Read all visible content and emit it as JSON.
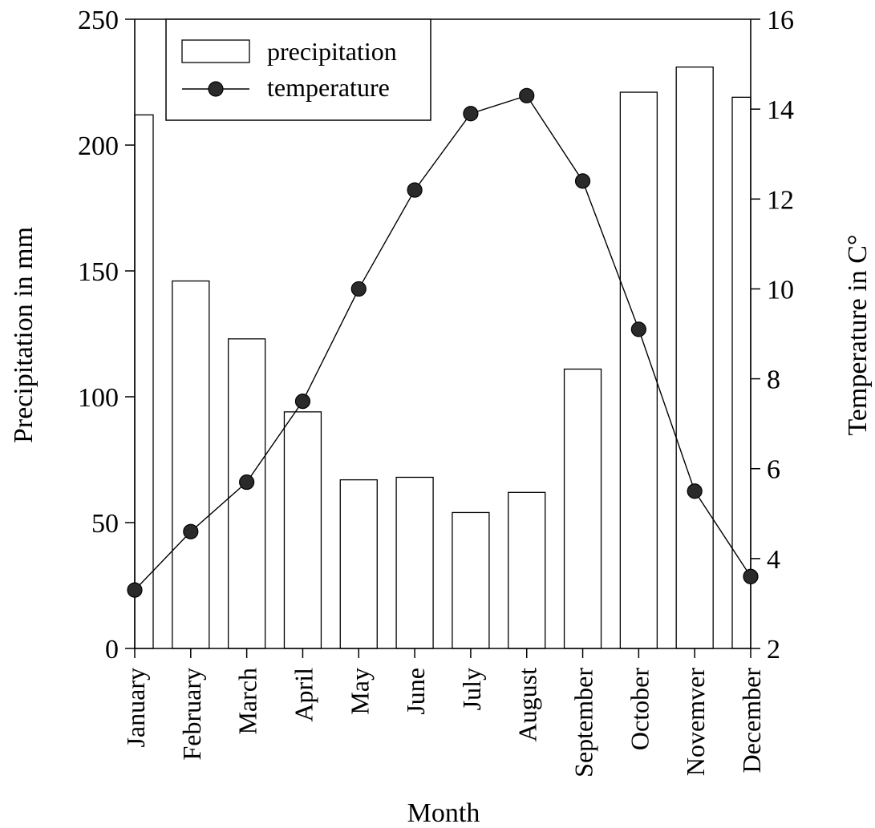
{
  "chart_data": {
    "type": "bar+line",
    "title": "",
    "xlabel": "Month",
    "ylabel_left": "Precipitation in mm",
    "ylabel_right": "Temperature in C°",
    "categories": [
      "January",
      "February",
      "March",
      "April",
      "May",
      "June",
      "July",
      "August",
      "September",
      "October",
      "Novemver",
      "December"
    ],
    "series": [
      {
        "name": "precipitation",
        "type": "bar",
        "axis": "left",
        "values": [
          212,
          146,
          123,
          94,
          67,
          68,
          54,
          62,
          111,
          221,
          231,
          219
        ]
      },
      {
        "name": "temperature",
        "type": "line",
        "axis": "right",
        "values": [
          3.3,
          4.6,
          5.7,
          7.5,
          10.0,
          12.2,
          13.9,
          14.3,
          12.4,
          9.1,
          5.5,
          3.6
        ]
      }
    ],
    "ylim_left": [
      0,
      250
    ],
    "yticks_left": [
      "0",
      "50",
      "100",
      "150",
      "200",
      "250"
    ],
    "ylim_right": [
      2,
      16
    ],
    "yticks_right": [
      "2",
      "4",
      "6",
      "8",
      "10",
      "12",
      "14",
      "16"
    ],
    "grid": false,
    "legend": {
      "position": "top-left",
      "items": [
        {
          "label": "precipitation",
          "kind": "bar"
        },
        {
          "label": "temperature",
          "kind": "line-marker"
        }
      ]
    },
    "colors": {
      "bar_fill": "#ffffff",
      "stroke": "#000000",
      "marker": "#2a2a2a"
    }
  }
}
